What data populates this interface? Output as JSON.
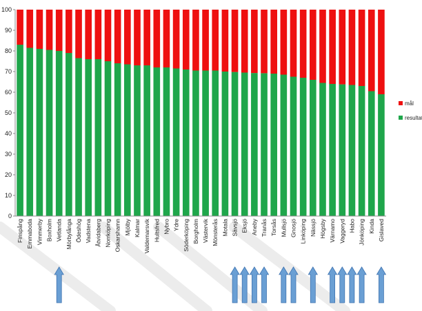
{
  "chart_data": {
    "type": "bar",
    "stacked": true,
    "categories": [
      "Finspång",
      "Emmaboda",
      "Vimmerby",
      "Boxholm",
      "Vetlanda",
      "Mörbylånga",
      "Ödeshög",
      "Vadstena",
      "Åtvidaberg",
      "Norrköping",
      "Oskarshamn",
      "Mjölby",
      "Kalmar",
      "Valdemarsvik",
      "Hultsfred",
      "Nybro",
      "Ydre",
      "Söderköping",
      "Borgholm",
      "Västervik",
      "Mönsterås",
      "Motala",
      "Sävsjö",
      "Eksjö",
      "Aneby",
      "Tranås",
      "Torsås",
      "Mullsjö",
      "Gnosjö",
      "Linköping",
      "Nässjö",
      "Högsby",
      "Värnamo",
      "Vaggeryd",
      "Habo",
      "Jönköping",
      "Kinda",
      "Gislaved"
    ],
    "series": [
      {
        "name": "resultat",
        "color": "#1fa64b",
        "values": [
          83,
          81.5,
          81,
          80.5,
          80,
          79,
          76.5,
          76,
          76,
          75,
          74,
          73.5,
          73,
          73,
          72,
          72,
          71.5,
          71,
          70.5,
          70.5,
          70.5,
          70,
          69.8,
          69.5,
          69.3,
          69.2,
          69,
          68.5,
          67.5,
          67,
          66,
          64.5,
          64,
          63.8,
          63.5,
          63,
          60.5,
          59
        ]
      },
      {
        "name": "mål",
        "color": "#ee1010",
        "values": [
          17,
          18.5,
          19,
          19.5,
          20,
          21,
          23.5,
          24,
          24,
          25,
          26,
          26.5,
          27,
          27,
          28,
          28,
          28.5,
          29,
          29.5,
          29.5,
          29.5,
          30,
          30.2,
          30.5,
          30.7,
          30.8,
          31,
          31.5,
          32.5,
          33,
          34,
          35.5,
          36,
          36.2,
          36.5,
          37,
          39.5,
          41
        ]
      }
    ],
    "legend": "right",
    "ylim": [
      0,
      100
    ],
    "yticks": [
      0,
      10,
      20,
      30,
      40,
      50,
      60,
      70,
      80,
      90,
      100
    ],
    "grid": false,
    "annotations": {
      "type": "up-arrows",
      "color": "#6a9fd4",
      "categories": [
        "Vetlanda",
        "Sävsjö",
        "Eksjö",
        "Aneby",
        "Tranås",
        "Mullsjö",
        "Gnosjö",
        "Nässjö",
        "Värnamo",
        "Vaggeryd",
        "Habo",
        "Jönköping",
        "Gislaved"
      ]
    }
  }
}
